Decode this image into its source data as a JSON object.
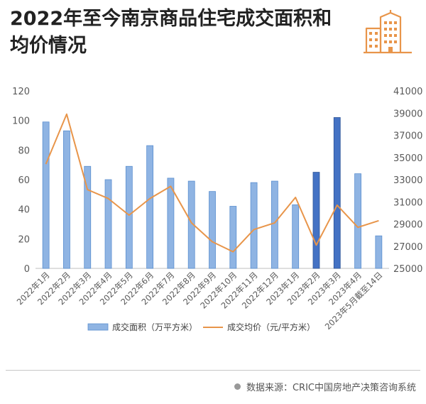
{
  "header": {
    "title": "2022年至今南京商品住宅成交面积和均价情况",
    "icon": "building-icon",
    "icon_color": "#e8954a"
  },
  "source": {
    "text": "数据来源：CRIC中国房地产决策咨询系统"
  },
  "chart_data": {
    "type": "bar",
    "title": "2022年至今南京商品住宅成交面积和均价情况",
    "categories": [
      "2022年1月",
      "2022年2月",
      "2022年3月",
      "2022年4月",
      "2022年5月",
      "2022年6月",
      "2022年7月",
      "2022年8月",
      "2022年9月",
      "2022年10月",
      "2022年11月",
      "2022年12月",
      "2023年1月",
      "2023年2月",
      "2023年3月",
      "2023年4月",
      "2023年5月截至14日"
    ],
    "series": [
      {
        "name": "成交面积（万平方米）",
        "type": "bar",
        "axis": "left",
        "color": "#8fb4e3",
        "highlight_color": "#4472c4",
        "highlight_indices": [
          13,
          14
        ],
        "values": [
          99,
          93,
          69,
          60,
          69,
          83,
          61,
          59,
          52,
          42,
          58,
          59,
          43,
          65,
          102,
          64,
          22
        ]
      },
      {
        "name": "成交均价（元/平方米）",
        "type": "line",
        "axis": "right",
        "color": "#e8954a",
        "values": [
          34400,
          38900,
          32100,
          31300,
          29800,
          31300,
          32400,
          29100,
          27400,
          26500,
          28500,
          29100,
          31400,
          27100,
          30700,
          28700,
          29300
        ]
      }
    ],
    "y_left": {
      "min": 0,
      "max": 120,
      "ticks": [
        0,
        20,
        40,
        60,
        80,
        100,
        120
      ]
    },
    "y_right": {
      "min": 25000,
      "max": 41000,
      "ticks": [
        25000,
        27000,
        29000,
        31000,
        33000,
        35000,
        37000,
        39000,
        41000
      ]
    },
    "grid": false,
    "legend_position": "bottom"
  }
}
